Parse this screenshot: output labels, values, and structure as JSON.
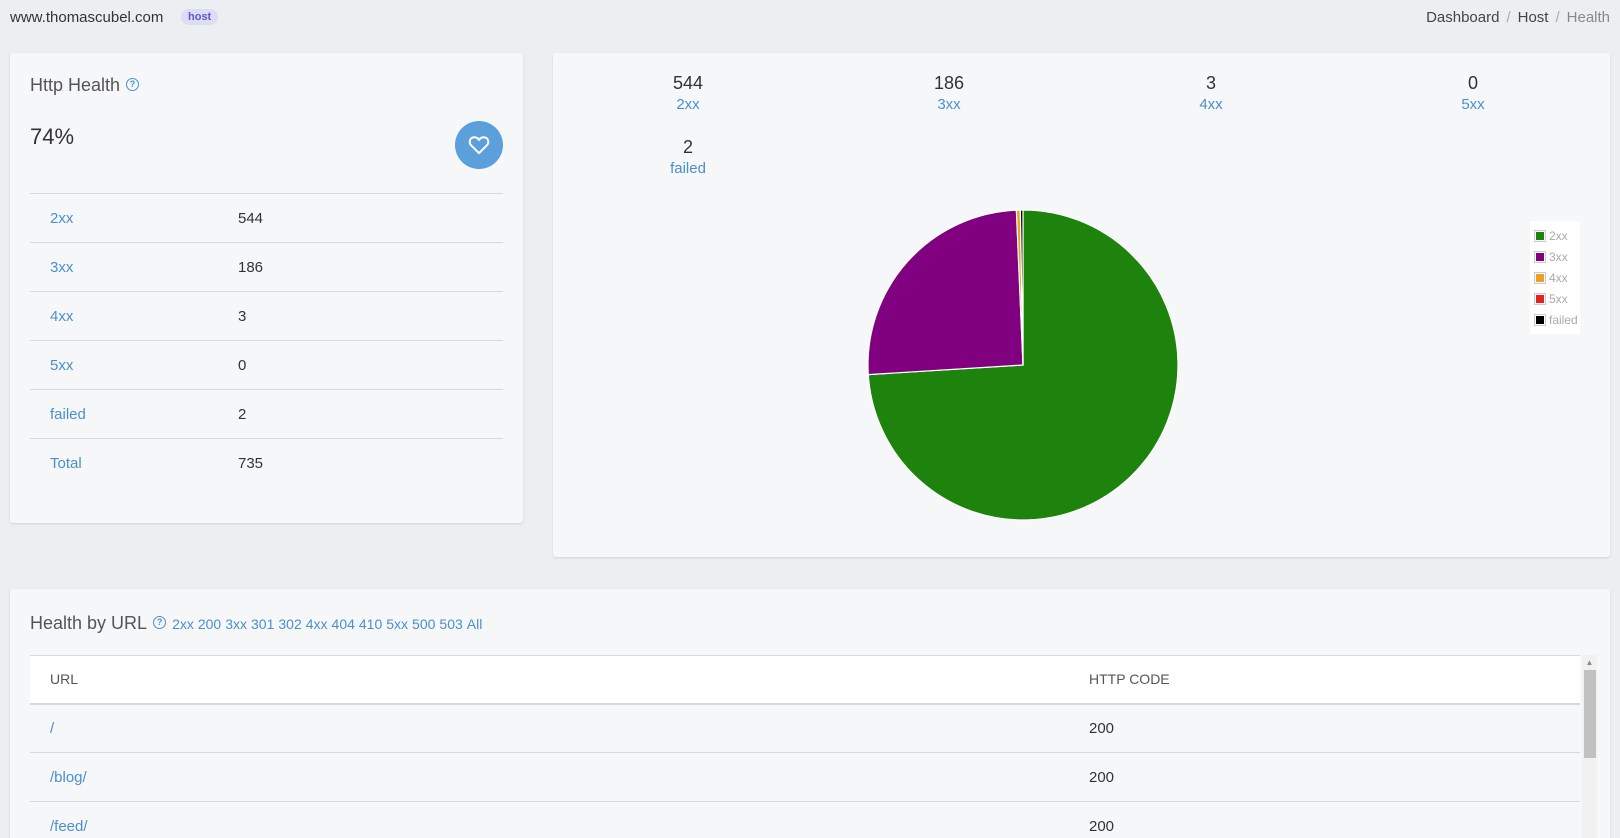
{
  "header": {
    "site": "www.thomascubel.com",
    "badge": "host",
    "breadcrumb": [
      "Dashboard",
      "Host",
      "Health"
    ]
  },
  "health_card": {
    "title": "Http Health",
    "percent": "74%",
    "rows": [
      {
        "label": "2xx",
        "value": "544"
      },
      {
        "label": "3xx",
        "value": "186"
      },
      {
        "label": "4xx",
        "value": "3"
      },
      {
        "label": "5xx",
        "value": "0"
      },
      {
        "label": "failed",
        "value": "2"
      },
      {
        "label": "Total",
        "value": "735"
      }
    ]
  },
  "summary": [
    {
      "value": "544",
      "label": "2xx"
    },
    {
      "value": "186",
      "label": "3xx"
    },
    {
      "value": "3",
      "label": "4xx"
    },
    {
      "value": "0",
      "label": "5xx"
    },
    {
      "value": "2",
      "label": "failed"
    }
  ],
  "chart_data": {
    "type": "pie",
    "title": "",
    "categories": [
      "2xx",
      "3xx",
      "4xx",
      "5xx",
      "failed"
    ],
    "values": [
      544,
      186,
      3,
      0,
      2
    ],
    "colors": [
      "#1e830c",
      "#800080",
      "#f0a020",
      "#e82020",
      "#000000"
    ],
    "legend": "right"
  },
  "url_card": {
    "title": "Health by URL",
    "filters": [
      "2xx",
      "200",
      "3xx",
      "301",
      "302",
      "4xx",
      "404",
      "410",
      "5xx",
      "500",
      "503",
      "All"
    ],
    "columns": [
      "URL",
      "HTTP CODE"
    ],
    "rows": [
      {
        "url": "/",
        "code": "200"
      },
      {
        "url": "/blog/",
        "code": "200"
      },
      {
        "url": "/feed/",
        "code": "200"
      }
    ]
  },
  "icons": {
    "help": "help-circle-icon",
    "heart": "heart-icon"
  }
}
